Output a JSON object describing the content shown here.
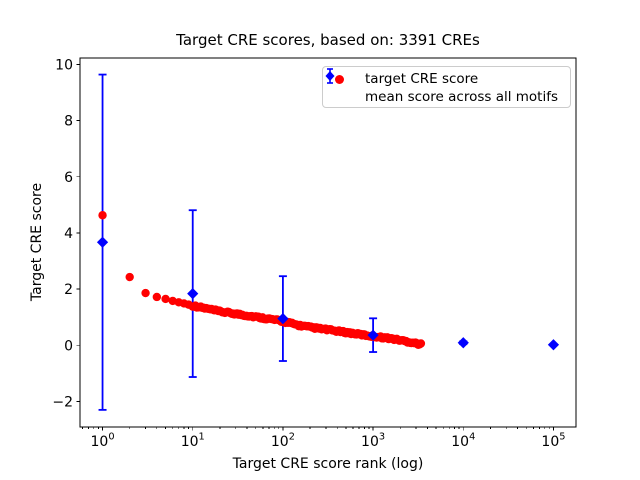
{
  "chart_data": {
    "type": "scatter",
    "title": "Target CRE scores, based on: 3391 CREs",
    "xlabel": "Target CRE score rank (log)",
    "ylabel": "Target CRE score",
    "x_scale": "log",
    "xlim_log10": [
      -0.25,
      5.25
    ],
    "ylim": [
      -2.91,
      10.23
    ],
    "grid": false,
    "x_major_ticks": [
      {
        "value": 1,
        "mantissa": "10",
        "exponent": "0"
      },
      {
        "value": 10,
        "mantissa": "10",
        "exponent": "1"
      },
      {
        "value": 100,
        "mantissa": "10",
        "exponent": "2"
      },
      {
        "value": 1000,
        "mantissa": "10",
        "exponent": "3"
      },
      {
        "value": 10000,
        "mantissa": "10",
        "exponent": "4"
      },
      {
        "value": 100000,
        "mantissa": "10",
        "exponent": "5"
      }
    ],
    "y_ticks": [
      {
        "value": -2,
        "label": "−2"
      },
      {
        "value": 0,
        "label": "0"
      },
      {
        "value": 2,
        "label": "2"
      },
      {
        "value": 4,
        "label": "4"
      },
      {
        "value": 6,
        "label": "6"
      },
      {
        "value": 8,
        "label": "8"
      },
      {
        "value": 10,
        "label": "10"
      }
    ],
    "series": [
      {
        "name": "target CRE score",
        "marker": "circle",
        "color": "#ff0000",
        "n_points": 3391,
        "anchor_ranks": [
          1,
          2,
          3,
          4,
          5,
          6,
          7,
          8,
          10,
          15,
          20,
          30,
          50,
          70,
          100,
          150,
          200,
          300,
          500,
          700,
          1000,
          1500,
          2000,
          3000,
          3391
        ],
        "anchor_scores": [
          4.63,
          2.43,
          1.86,
          1.72,
          1.65,
          1.58,
          1.53,
          1.49,
          1.41,
          1.29,
          1.2,
          1.12,
          1.01,
          0.94,
          0.85,
          0.71,
          0.64,
          0.56,
          0.46,
          0.39,
          0.32,
          0.25,
          0.18,
          0.07,
          0.03
        ]
      },
      {
        "name": "mean score across all motifs",
        "marker": "diamond",
        "color": "#0000ff",
        "x": [
          1,
          10,
          100,
          1000,
          10000,
          100000
        ],
        "mean": [
          3.67,
          1.84,
          0.95,
          0.36,
          0.09,
          0.02
        ],
        "stdev": [
          5.97,
          2.97,
          1.51,
          0.6,
          0.05,
          0.03
        ]
      }
    ],
    "legend": {
      "position": "upper right",
      "entries": [
        {
          "label": "target CRE score"
        },
        {
          "label": "mean score across all motifs"
        }
      ]
    }
  }
}
